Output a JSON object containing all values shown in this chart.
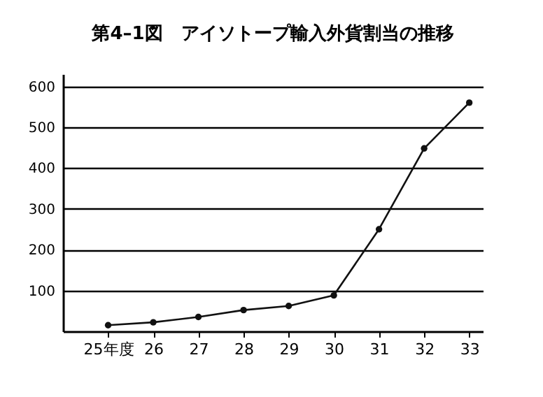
{
  "chart_data": {
    "type": "line",
    "title": "第4–1図　アイソトープ輸入外貨割当の推移",
    "x": [
      25,
      26,
      27,
      28,
      29,
      30,
      31,
      32,
      33
    ],
    "series": [
      {
        "color": "#111111",
        "values": [
          15,
          22,
          35,
          52,
          62,
          88,
          250,
          448,
          560
        ]
      }
    ],
    "xlim": [
      24,
      33.3
    ],
    "xticks": [
      {
        "value": 25,
        "label": "25年度"
      },
      26,
      27,
      28,
      29,
      30,
      31,
      32,
      33
    ],
    "ylim": [
      0,
      630
    ],
    "yticks": [
      100,
      200,
      300,
      400,
      500,
      600
    ],
    "grid": "y",
    "marker": "circle",
    "line_style": "solid"
  }
}
